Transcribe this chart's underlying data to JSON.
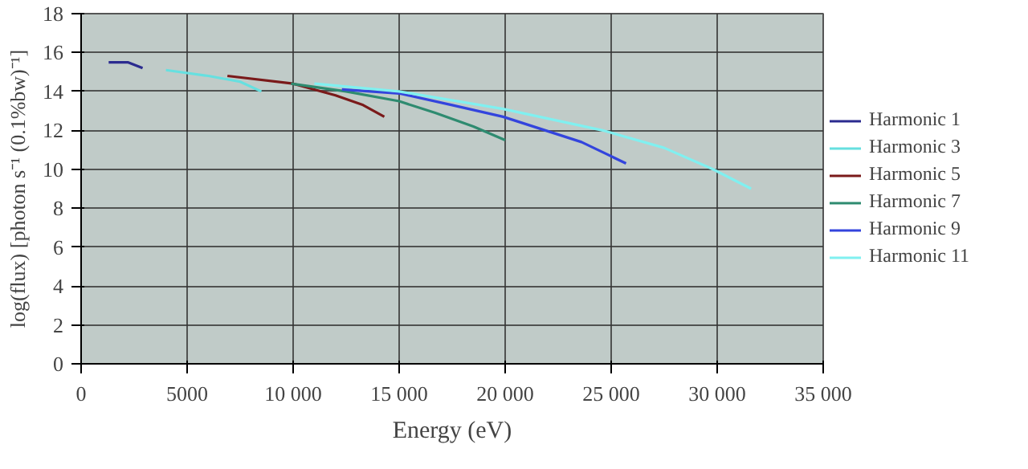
{
  "chart_data": {
    "type": "line",
    "xlabel": "Energy (eV)",
    "ylabel": "log(flux) [photon s⁻¹ (0.1%bw)⁻¹]",
    "xlim": [
      0,
      35000
    ],
    "xticks": [
      0,
      5000,
      {
        "value": 10000,
        "label": "10 000"
      },
      {
        "value": 15000,
        "label": "15 000"
      },
      {
        "value": 20000,
        "label": "20 000"
      },
      {
        "value": 25000,
        "label": "25 000"
      },
      {
        "value": 30000,
        "label": "30 000"
      },
      {
        "value": 35000,
        "label": "35 000"
      }
    ],
    "ylim": [
      0,
      18
    ],
    "yticks": [
      0,
      2,
      4,
      6,
      8,
      10,
      12,
      14,
      16,
      18
    ],
    "grid": true,
    "legend": "right",
    "marker": "none",
    "line_style": "solid",
    "series": [
      {
        "name": "Harmonic 1",
        "color": "#2b2b8f",
        "x": [
          1300,
          2200,
          2900
        ],
        "values": [
          15.5,
          15.5,
          15.2
        ]
      },
      {
        "name": "Harmonic 3",
        "color": "#66e0e0",
        "x": [
          4000,
          6000,
          7500,
          8500
        ],
        "values": [
          15.1,
          14.8,
          14.5,
          14.0
        ]
      },
      {
        "name": "Harmonic 5",
        "color": "#7a1a1a",
        "x": [
          6900,
          10000,
          12000,
          13300,
          14300
        ],
        "values": [
          14.8,
          14.4,
          13.8,
          13.3,
          12.7
        ]
      },
      {
        "name": "Harmonic 7",
        "color": "#2e8b70",
        "x": [
          9900,
          12500,
          15000,
          16700,
          18500,
          20000
        ],
        "values": [
          14.4,
          14.0,
          13.5,
          12.9,
          12.2,
          11.5
        ]
      },
      {
        "name": "Harmonic 9",
        "color": "#3344dd",
        "x": [
          12300,
          15000,
          17500,
          19900,
          23600,
          25700
        ],
        "values": [
          14.1,
          13.9,
          13.3,
          12.7,
          11.4,
          10.3
        ]
      },
      {
        "name": "Harmonic 11",
        "color": "#80f0f0",
        "x": [
          11000,
          15000,
          19900,
          24600,
          27500,
          29800,
          31600
        ],
        "values": [
          14.4,
          14.0,
          13.1,
          12.0,
          11.1,
          10.0,
          9.0
        ]
      }
    ]
  }
}
